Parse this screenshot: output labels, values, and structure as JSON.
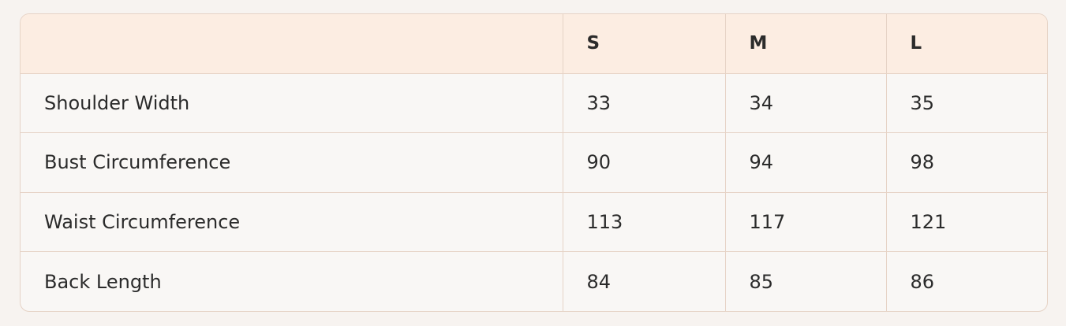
{
  "table": {
    "headers": [
      "",
      "S",
      "M",
      "L"
    ],
    "rows": [
      {
        "label": "Shoulder Width",
        "values": [
          "33",
          "34",
          "35"
        ]
      },
      {
        "label": "Bust Circumference",
        "values": [
          "90",
          "94",
          "98"
        ]
      },
      {
        "label": "Waist Circumference",
        "values": [
          "113",
          "117",
          "121"
        ]
      },
      {
        "label": "Back Length",
        "values": [
          "84",
          "85",
          "86"
        ]
      }
    ]
  },
  "colors": {
    "header_bg": "#fcede2",
    "border": "#e6d3c6",
    "body_bg": "#f9f7f5"
  }
}
